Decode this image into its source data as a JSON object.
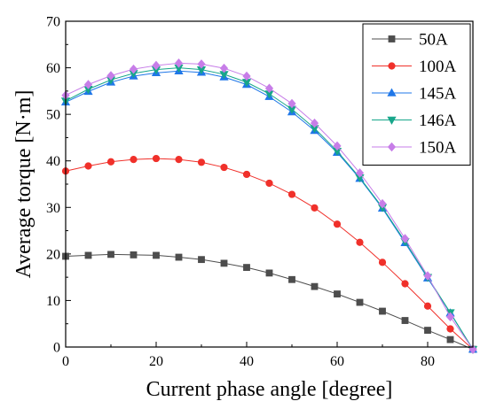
{
  "chart_data": {
    "type": "line",
    "title": "",
    "xlabel": "Current phase angle [degree]",
    "ylabel": "Average torque [N·m]",
    "xlim": [
      0,
      90
    ],
    "ylim": [
      0,
      70
    ],
    "xticks": [
      0,
      20,
      40,
      60,
      80
    ],
    "yticks": [
      0,
      10,
      20,
      30,
      40,
      50,
      60,
      70
    ],
    "grid": false,
    "legend_position": "top-right",
    "x": [
      0,
      5,
      10,
      15,
      20,
      25,
      30,
      35,
      40,
      45,
      50,
      55,
      60,
      65,
      70,
      75,
      80,
      85,
      90
    ],
    "series": [
      {
        "name": "50A",
        "color": "#4d4d4d",
        "marker": "square",
        "values": [
          19.5,
          19.7,
          19.9,
          19.8,
          19.7,
          19.3,
          18.8,
          18.0,
          17.1,
          15.9,
          14.5,
          13.0,
          11.4,
          9.6,
          7.7,
          5.7,
          3.6,
          1.6,
          -0.5
        ]
      },
      {
        "name": "100A",
        "color": "#f0302a",
        "marker": "circle",
        "values": [
          37.8,
          38.9,
          39.8,
          40.3,
          40.5,
          40.3,
          39.7,
          38.6,
          37.1,
          35.2,
          32.8,
          29.9,
          26.4,
          22.5,
          18.2,
          13.6,
          8.8,
          3.9,
          -0.5
        ]
      },
      {
        "name": "145A",
        "color": "#1f77e8",
        "marker": "triangle-up",
        "values": [
          52.6,
          54.9,
          56.9,
          58.2,
          58.9,
          59.3,
          59.0,
          58.0,
          56.4,
          53.8,
          50.5,
          46.5,
          41.8,
          36.2,
          29.8,
          22.4,
          14.8,
          7.3,
          -0.5
        ]
      },
      {
        "name": "146A",
        "color": "#17a68a",
        "marker": "triangle-down",
        "values": [
          52.9,
          55.4,
          57.4,
          58.8,
          59.6,
          60.0,
          59.6,
          58.6,
          56.9,
          54.4,
          51.1,
          47.0,
          42.1,
          36.4,
          30.0,
          22.7,
          15.0,
          7.4,
          -0.5
        ]
      },
      {
        "name": "150A",
        "color": "#c77de8",
        "marker": "diamond",
        "values": [
          54.1,
          56.4,
          58.3,
          59.7,
          60.5,
          61.0,
          60.8,
          59.9,
          58.2,
          55.6,
          52.3,
          48.1,
          43.2,
          37.4,
          30.8,
          23.3,
          15.3,
          6.5,
          -0.5
        ]
      }
    ]
  }
}
